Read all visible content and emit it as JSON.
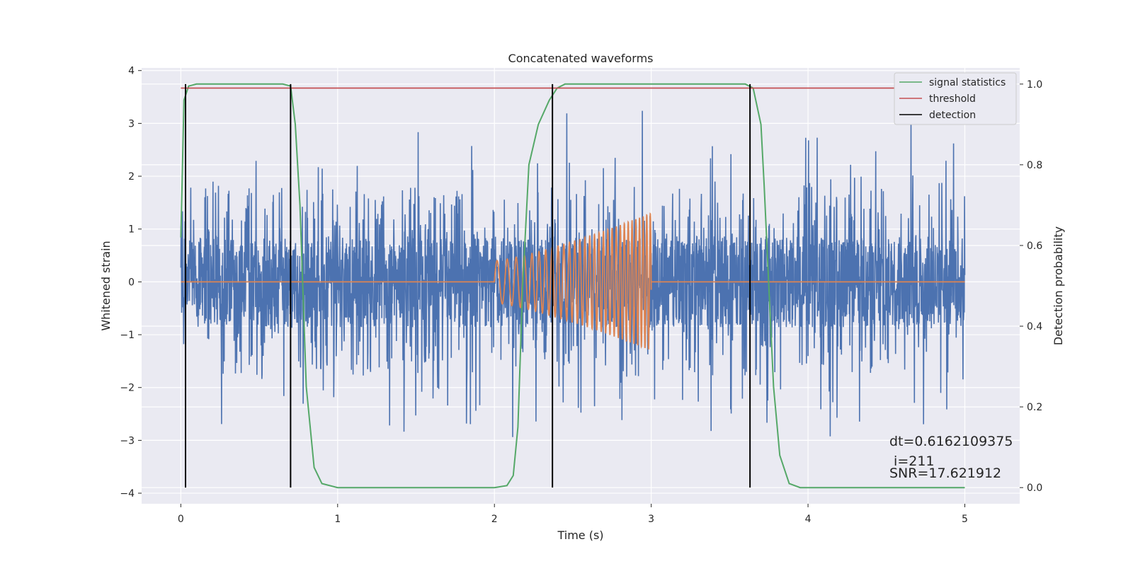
{
  "chart_data": {
    "type": "line",
    "title": "Concatenated waveforms",
    "xlabel": "Time (s)",
    "ylabel_left": "Whitened strain",
    "ylabel_right": "Detection probability",
    "xlim": [
      -0.25,
      5.35
    ],
    "ylim_left": [
      -4.2,
      4.05
    ],
    "ylim_right": [
      -0.04,
      1.04
    ],
    "x_ticks": [
      "0",
      "1",
      "2",
      "3",
      "4",
      "5"
    ],
    "x_tick_values": [
      0,
      1,
      2,
      3,
      4,
      5
    ],
    "y_left_ticks": [
      "4",
      "3",
      "2",
      "1",
      "0",
      "−1",
      "−2",
      "−3",
      "−4"
    ],
    "y_left_tick_values": [
      4,
      3,
      2,
      1,
      0,
      -1,
      -2,
      -3,
      -4
    ],
    "y_right_ticks": [
      "1.0",
      "0.8",
      "0.6",
      "0.4",
      "0.2",
      "0.0"
    ],
    "y_right_tick_values": [
      1.0,
      0.8,
      0.6,
      0.4,
      0.2,
      0.0
    ],
    "grid": true,
    "legend_position": "top-right",
    "legend": [
      {
        "label": "signal statistics",
        "color": "#55a868"
      },
      {
        "label": "threshold",
        "color": "#c44e52"
      },
      {
        "label": "detection",
        "color": "#000000"
      }
    ],
    "series": [
      {
        "name": "strain",
        "color": "#4c72b0",
        "kind": "noise",
        "x_range": [
          0,
          5
        ],
        "core_amplitude": 0.75,
        "peak_amplitude": 3.6
      },
      {
        "name": "waveform",
        "color": "#dd8452",
        "kind": "chirp",
        "x_range": [
          2.0,
          3.0
        ],
        "amplitude_start": 0.4,
        "amplitude_end": 1.3,
        "freq_start_hz": 14,
        "freq_end_hz": 45
      },
      {
        "name": "signal statistics",
        "color": "#55a868",
        "axis": "right",
        "points": [
          [
            0.0,
            0.62
          ],
          [
            0.02,
            0.96
          ],
          [
            0.05,
            0.995
          ],
          [
            0.1,
            1.0
          ],
          [
            0.65,
            1.0
          ],
          [
            0.7,
            0.995
          ],
          [
            0.73,
            0.9
          ],
          [
            0.76,
            0.7
          ],
          [
            0.8,
            0.25
          ],
          [
            0.85,
            0.05
          ],
          [
            0.9,
            0.01
          ],
          [
            1.0,
            0.0
          ],
          [
            1.1,
            0.0
          ],
          [
            2.0,
            0.0
          ],
          [
            2.08,
            0.005
          ],
          [
            2.12,
            0.03
          ],
          [
            2.15,
            0.15
          ],
          [
            2.18,
            0.5
          ],
          [
            2.22,
            0.8
          ],
          [
            2.28,
            0.9
          ],
          [
            2.35,
            0.96
          ],
          [
            2.4,
            0.99
          ],
          [
            2.45,
            1.0
          ],
          [
            3.6,
            1.0
          ],
          [
            3.65,
            0.99
          ],
          [
            3.7,
            0.9
          ],
          [
            3.72,
            0.75
          ],
          [
            3.75,
            0.5
          ],
          [
            3.78,
            0.25
          ],
          [
            3.82,
            0.08
          ],
          [
            3.88,
            0.01
          ],
          [
            3.95,
            0.0
          ],
          [
            5.0,
            0.0
          ]
        ]
      },
      {
        "name": "threshold",
        "color": "#c44e52",
        "axis": "right",
        "points": [
          [
            0,
            0.99
          ],
          [
            5,
            0.99
          ]
        ]
      }
    ],
    "detections": [
      0.03,
      0.7,
      2.37,
      3.63
    ]
  },
  "annotation": {
    "dt": "dt=0.6162109375",
    "i": " i=211",
    "snr": "SNR=17.621912"
  }
}
